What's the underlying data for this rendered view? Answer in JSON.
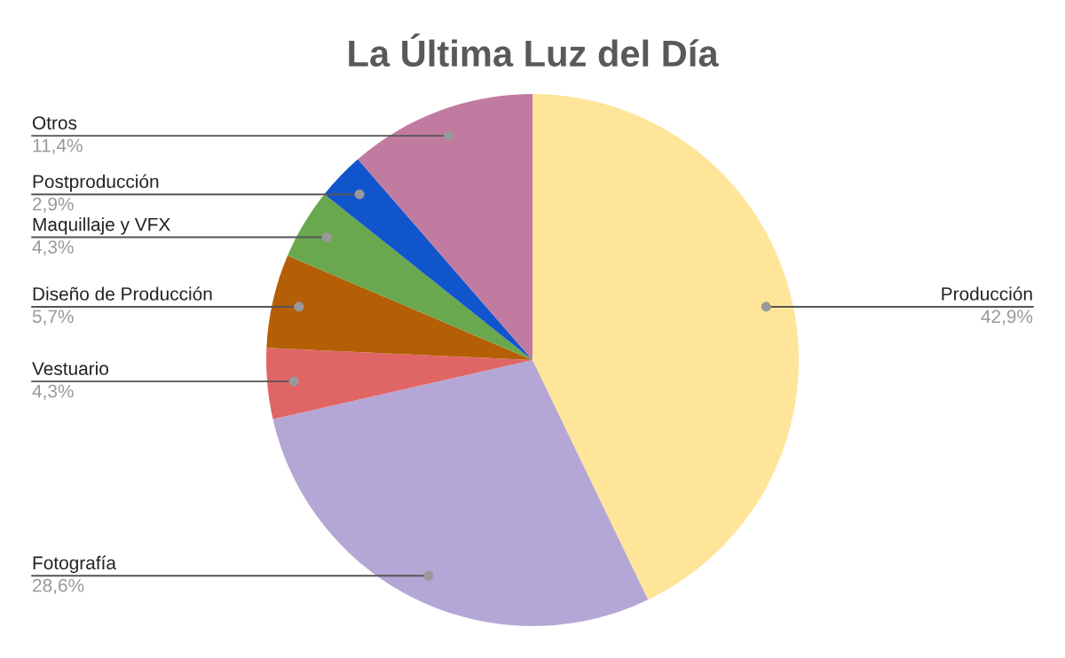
{
  "chart_data": {
    "type": "pie",
    "title": "La Última Luz del Día",
    "categories": [
      "Producción",
      "Fotografía",
      "Vestuario",
      "Diseño de Producción",
      "Maquillaje y VFX",
      "Postproducción",
      "Otros"
    ],
    "values": [
      42.9,
      28.6,
      4.3,
      5.7,
      4.3,
      2.9,
      11.4
    ],
    "value_labels": [
      "42,9%",
      "28,6%",
      "4,3%",
      "5,7%",
      "4,3%",
      "2,9%",
      "11,4%"
    ],
    "colors": [
      "#ffe599",
      "#b4a7d6",
      "#e06666",
      "#b45f06",
      "#6aa84f",
      "#1155cc",
      "#c27ba0"
    ],
    "legend": false
  }
}
